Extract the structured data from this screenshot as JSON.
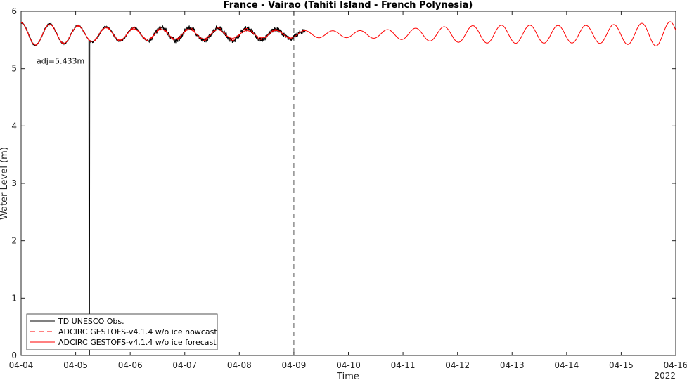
{
  "chart_data": {
    "type": "line",
    "title": "France - Vairao (Tahiti Island - French Polynesia)",
    "xlabel": "Time",
    "ylabel": "Water Level (m)",
    "x_tick_labels": [
      "04-04",
      "04-05",
      "04-06",
      "04-07",
      "04-08",
      "04-09",
      "04-10",
      "04-11",
      "04-12",
      "04-13",
      "04-14",
      "04-15",
      "04-16"
    ],
    "x_year_label": "2022",
    "xlim": [
      "2022-04-04",
      "2022-04-16"
    ],
    "ylim": [
      0,
      6
    ],
    "y_ticks": [
      0,
      1,
      2,
      3,
      4,
      5,
      6
    ],
    "grid": false,
    "legend_position": "lower-left",
    "vertical_marker": {
      "x": "2022-04-09",
      "style": "dashed"
    },
    "annotation": "adj=5.433m",
    "mean_level": 5.6,
    "series": [
      {
        "name": "TD UNESCO Obs.",
        "color": "#000000",
        "style": "solid",
        "x_range": [
          "2022-04-04",
          "2022-04-09 05:00"
        ],
        "mean": 5.6,
        "tidal_amplitude": {
          "start": 0.18,
          "end": 0.06
        },
        "dropout": {
          "x": "2022-04-05 06:00",
          "min": 0.0
        }
      },
      {
        "name": "ADCIRC GESTOFS-v4.1.4 w/o ice nowcast",
        "color": "#ff0000",
        "style": "dashed",
        "x_range": [
          "2022-04-04",
          "2022-04-09"
        ],
        "mean": 5.6,
        "tidal_amplitude": {
          "start": 0.18,
          "end": 0.06
        }
      },
      {
        "name": "ADCIRC GESTOFS-v4.1.4 w/o ice forecast",
        "color": "#ff0000",
        "style": "solid",
        "x_range": [
          "2022-04-04",
          "2022-04-16"
        ],
        "mean": 5.6,
        "tidal_amplitude": {
          "start": 0.18,
          "minimum": 0.04,
          "end": 0.21
        }
      }
    ]
  }
}
